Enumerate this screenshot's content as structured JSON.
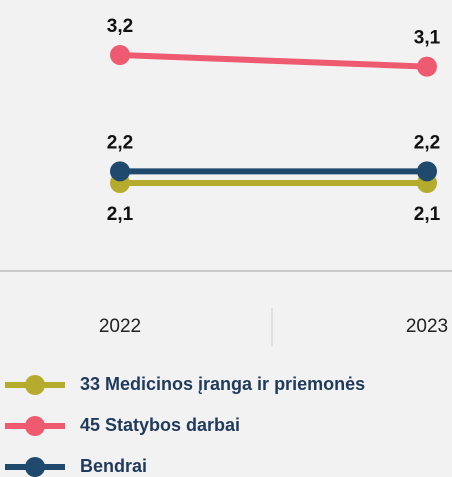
{
  "chart_data": {
    "type": "line",
    "categories": [
      "2022",
      "2023"
    ],
    "series": [
      {
        "name": "33 Medicinos įranga ir priemonės",
        "color": "#b5ac2e",
        "values": [
          2.1,
          2.1
        ],
        "value_labels": [
          "2,1",
          "2,1"
        ]
      },
      {
        "name": "45 Statybos darbai",
        "color": "#ee5a6f",
        "values": [
          3.2,
          3.1
        ],
        "value_labels": [
          "3,2",
          "3,1"
        ]
      },
      {
        "name": "Bendrai",
        "color": "#1f4a6e",
        "values": [
          2.2,
          2.2
        ],
        "value_labels": [
          "2,2",
          "2,2"
        ]
      }
    ]
  }
}
